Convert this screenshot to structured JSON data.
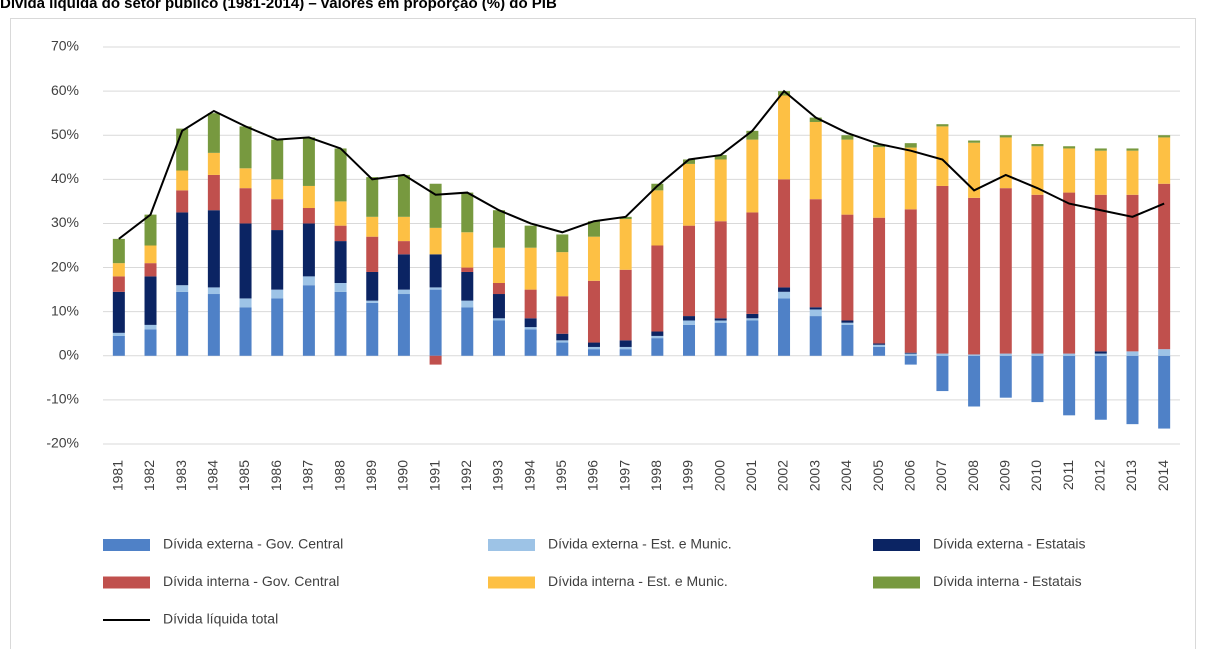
{
  "chart_data": {
    "type": "bar",
    "stacked": true,
    "title": "Dívida líquida do setor público (1981-2014) – valores em proporção (%) do PIB",
    "categories": [
      "1981",
      "1982",
      "1983",
      "1984",
      "1985",
      "1986",
      "1987",
      "1988",
      "1989",
      "1990",
      "1991",
      "1992",
      "1993",
      "1994",
      "1995",
      "1996",
      "1997",
      "1998",
      "1999",
      "2000",
      "2001",
      "2002",
      "2003",
      "2004",
      "2005",
      "2006",
      "2007",
      "2008",
      "2009",
      "2010",
      "2011",
      "2012",
      "2013",
      "2014"
    ],
    "ylim": [
      -20,
      70
    ],
    "yticks": [
      {
        "value": -20,
        "label": "-20%"
      },
      {
        "value": -10,
        "label": "-10%"
      },
      {
        "value": 0,
        "label": "0%"
      },
      {
        "value": 10,
        "label": "10%"
      },
      {
        "value": 20,
        "label": "20%"
      },
      {
        "value": 30,
        "label": "30%"
      },
      {
        "value": 40,
        "label": "40%"
      },
      {
        "value": 50,
        "label": "50%"
      },
      {
        "value": 60,
        "label": "60%"
      },
      {
        "value": 70,
        "label": "70%"
      }
    ],
    "grid": true,
    "series": [
      {
        "name": "Dívida externa - Gov. Central",
        "color": "#4f81c7",
        "values": [
          4.5,
          6,
          14.5,
          14,
          11,
          13,
          16,
          14.5,
          12,
          14,
          15,
          11,
          8,
          6,
          3,
          1.5,
          1.5,
          4,
          7,
          7.5,
          8,
          13,
          9,
          7,
          2,
          -2,
          -8,
          -11.5,
          -9.5,
          -10.5,
          -13.5,
          -14.5,
          -15.5,
          -16.5
        ]
      },
      {
        "name": "Dívida externa - Est. e Munic.",
        "color": "#9dc3e6",
        "values": [
          0.7,
          1,
          1.5,
          1.5,
          2,
          2,
          2,
          2,
          0.5,
          1,
          0.5,
          1.5,
          0.5,
          0.5,
          0.5,
          0.5,
          0.5,
          0.5,
          1,
          0.5,
          0.5,
          1.5,
          1.5,
          0.5,
          0.5,
          0.5,
          0.5,
          0.3,
          0.5,
          0.5,
          0.5,
          0.5,
          1,
          1.5
        ]
      },
      {
        "name": "Dívida externa - Estatais",
        "color": "#0b2463",
        "values": [
          9.3,
          11,
          16.5,
          17.5,
          17,
          13.5,
          12,
          9.5,
          6.5,
          8,
          7.5,
          6.5,
          5.5,
          2,
          1.5,
          1,
          1.5,
          1,
          1,
          0.5,
          1,
          1,
          0.5,
          0.5,
          0.3,
          0.2,
          0,
          0,
          0,
          0,
          0,
          0.5,
          0,
          0
        ]
      },
      {
        "name": "Dívida interna - Gov. Central",
        "color": "#c0504d",
        "values": [
          3.5,
          3,
          5,
          8,
          8,
          7,
          3.5,
          3.5,
          8,
          3,
          -2,
          1,
          2.5,
          6.5,
          8.5,
          14,
          16,
          19.5,
          20.5,
          22,
          23,
          24.5,
          24.5,
          24,
          28.5,
          32.5,
          38,
          35.5,
          37.5,
          36,
          36.5,
          35.5,
          35.5,
          37.5
        ]
      },
      {
        "name": "Dívida interna - Est. e Munic.",
        "color": "#fdc044",
        "values": [
          3,
          4,
          4.5,
          5,
          4.5,
          4.5,
          5,
          5.5,
          4.5,
          5.5,
          6,
          8,
          8,
          9.5,
          10,
          10,
          11.5,
          12.5,
          14,
          14,
          16.5,
          19,
          17.5,
          17,
          16,
          14,
          13.5,
          12.5,
          11.5,
          11,
          10,
          10,
          10,
          10.5
        ]
      },
      {
        "name": "Dívida interna - Estatais",
        "color": "#77993f",
        "values": [
          5.5,
          7,
          9.5,
          9,
          9.5,
          9,
          11,
          12,
          9,
          9.5,
          10,
          9,
          8.5,
          5,
          4,
          3.5,
          0.5,
          1.5,
          1,
          1,
          2,
          1,
          1,
          1,
          0.5,
          1,
          0.5,
          0.5,
          0.5,
          0.5,
          0.5,
          0.5,
          0.5,
          0.5
        ]
      },
      {
        "name": "Dívida líquida total",
        "color": "#000000",
        "type": "line",
        "values": [
          26.5,
          32,
          51,
          55.5,
          52,
          49,
          49.5,
          47,
          40,
          41,
          36.5,
          37,
          33,
          30,
          28,
          30.5,
          31.5,
          38.5,
          44.5,
          45.5,
          51,
          60,
          54,
          50.5,
          48,
          46.5,
          44.5,
          37.5,
          41,
          38,
          34.5,
          33,
          31.5,
          34.5
        ]
      }
    ]
  }
}
